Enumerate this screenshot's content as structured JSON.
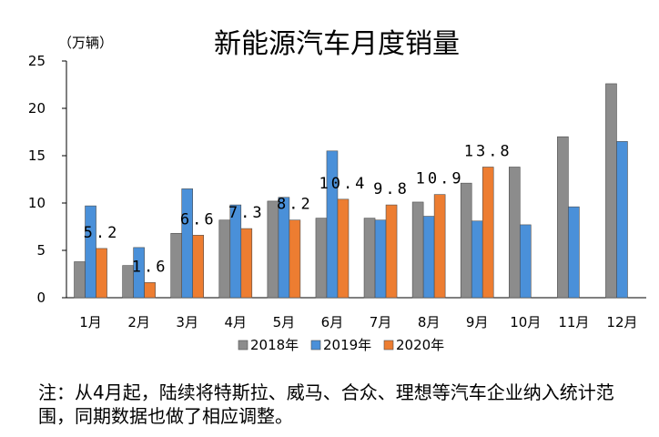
{
  "chart_data": {
    "type": "bar",
    "title": "新能源汽车月度销量",
    "ylabel": "（万辆）",
    "xlabel": "",
    "ylim": [
      0,
      25
    ],
    "yticks": [
      0,
      5,
      10,
      15,
      20,
      25
    ],
    "categories": [
      "1月",
      "2月",
      "3月",
      "4月",
      "5月",
      "6月",
      "7月",
      "8月",
      "9月",
      "10月",
      "11月",
      "12月"
    ],
    "series": [
      {
        "name": "2018年",
        "color": "#8c8c8c",
        "values": [
          3.8,
          3.4,
          6.8,
          8.2,
          10.2,
          8.4,
          8.4,
          10.1,
          12.1,
          13.8,
          17.0,
          22.6
        ]
      },
      {
        "name": "2019年",
        "color": "#4a90d9",
        "values": [
          9.7,
          5.3,
          11.5,
          9.8,
          10.6,
          15.5,
          8.2,
          8.6,
          8.1,
          7.7,
          9.6,
          16.5
        ]
      },
      {
        "name": "2020年",
        "color": "#ed7d31",
        "values": [
          5.2,
          1.6,
          6.6,
          7.3,
          8.2,
          10.4,
          9.8,
          10.9,
          13.8,
          null,
          null,
          null
        ],
        "labels": [
          "5.2",
          "1.6",
          "6.6",
          "7.3",
          "8.2",
          "10.4",
          "9.8",
          "10.9",
          "13.8",
          "",
          "",
          ""
        ]
      }
    ],
    "legend_position": "bottom",
    "grid": false
  },
  "note": "注：从4月起，陆续将特斯拉、威马、合众、理想等汽车企业纳入统计范围，同期数据也做了相应调整。"
}
